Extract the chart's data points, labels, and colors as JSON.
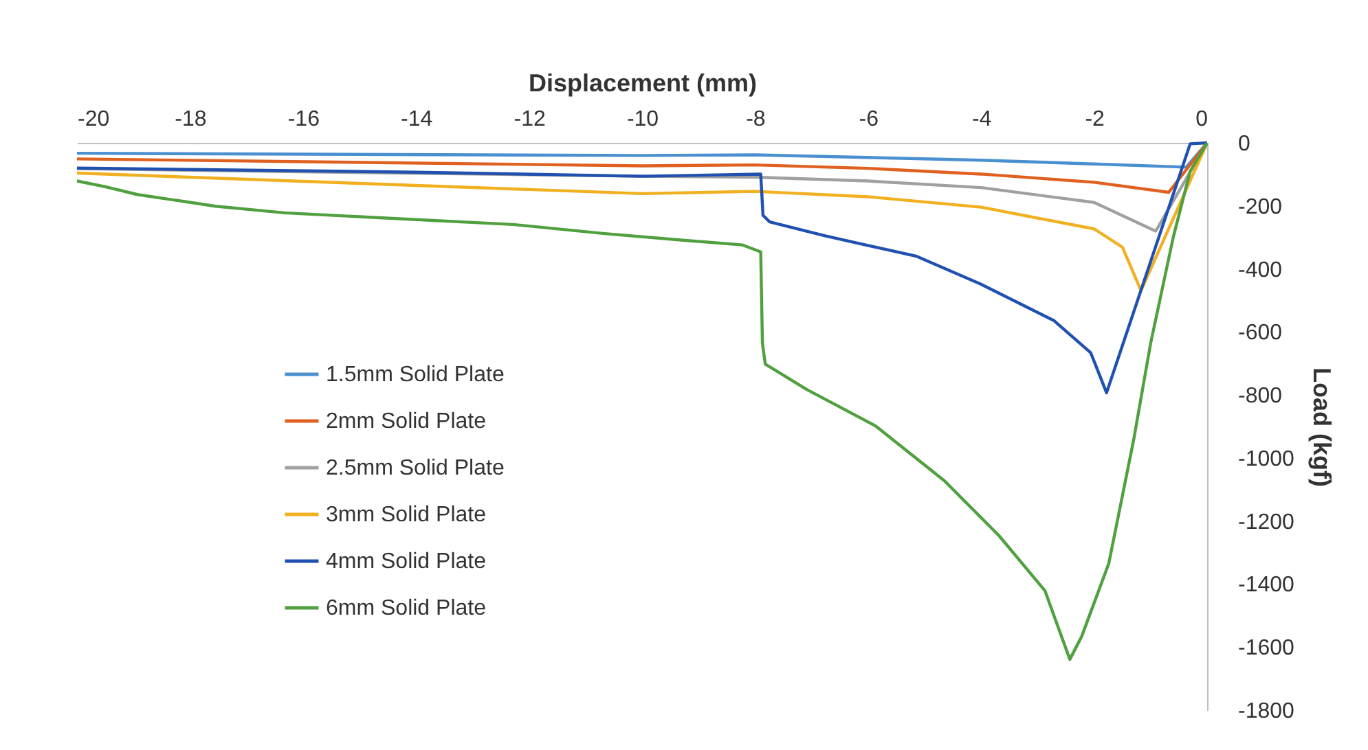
{
  "chart_data": {
    "type": "line",
    "xlabel": "Displacement (mm)",
    "ylabel": "Load (kgf)",
    "xlim": [
      -20,
      0
    ],
    "xticks": [
      -20,
      -18,
      -16,
      -14,
      -12,
      -10,
      -8,
      -6,
      -4,
      -2,
      0
    ],
    "ylim": [
      -1800,
      0
    ],
    "yticks": [
      0,
      -200,
      -400,
      -600,
      -800,
      -1000,
      -1200,
      -1400,
      -1600,
      -1800
    ],
    "grid": false,
    "legend": "left",
    "marker": "none",
    "line_style": "solid",
    "series": [
      {
        "name": "1.5mm Solid Plate",
        "color": "#4a90d0",
        "x": [
          0,
          -0.37,
          -2,
          -4,
          -8,
          -10,
          -20
        ],
        "values": [
          0,
          -77,
          -67,
          -55,
          -38,
          -40,
          -33
        ]
      },
      {
        "name": "2mm Solid Plate",
        "color": "#e06020",
        "x": [
          0,
          -0.68,
          -2,
          -4,
          -6,
          -8,
          -10,
          -20
        ],
        "values": [
          0,
          -157,
          -125,
          -99,
          -81,
          -70,
          -73,
          -51
        ]
      },
      {
        "name": "2.5mm Solid Plate",
        "color": "#a0a0a0",
        "x": [
          0,
          -0.91,
          -2,
          -4,
          -6,
          -8,
          -10,
          -20
        ],
        "values": [
          0,
          -280,
          -189,
          -142,
          -121,
          -109,
          -106,
          -82
        ]
      },
      {
        "name": "3mm Solid Plate",
        "color": "#f0b020",
        "x": [
          0,
          -1.17,
          -1.5,
          -2,
          -4,
          -6,
          -8,
          -10,
          -20
        ],
        "values": [
          0,
          -469,
          -331,
          -273,
          -204,
          -171,
          -154,
          -161,
          -96
        ]
      },
      {
        "name": "4mm Solid Plate",
        "color": "#2050b0",
        "x": [
          0,
          -0.3,
          -1.78,
          -2.06,
          -2.71,
          -4.01,
          -5.14,
          -6.76,
          -7.74,
          -7.86,
          -7.9,
          -10,
          -14,
          -20
        ],
        "values": [
          0,
          -3,
          -793,
          -666,
          -564,
          -448,
          -360,
          -295,
          -251,
          -230,
          -99,
          -106,
          -93,
          -80
        ]
      },
      {
        "name": "6mm Solid Plate",
        "color": "#50a040",
        "x": [
          0,
          -0.3,
          -0.6,
          -1.0,
          -1.3,
          -1.74,
          -2.22,
          -2.43,
          -2.87,
          -3.68,
          -4.65,
          -5.87,
          -7.09,
          -7.82,
          -7.87,
          -7.9,
          -8.22,
          -9.2,
          -10.66,
          -12.28,
          -14.71,
          -16.33,
          -17.55,
          -18.93,
          -19.5,
          -20
        ],
        "values": [
          0,
          -90,
          -300,
          -636,
          -942,
          -1334,
          -1566,
          -1639,
          -1421,
          -1247,
          -1072,
          -898,
          -782,
          -702,
          -636,
          -346,
          -324,
          -310,
          -288,
          -259,
          -237,
          -222,
          -201,
          -164,
          -139,
          -121
        ]
      }
    ]
  }
}
